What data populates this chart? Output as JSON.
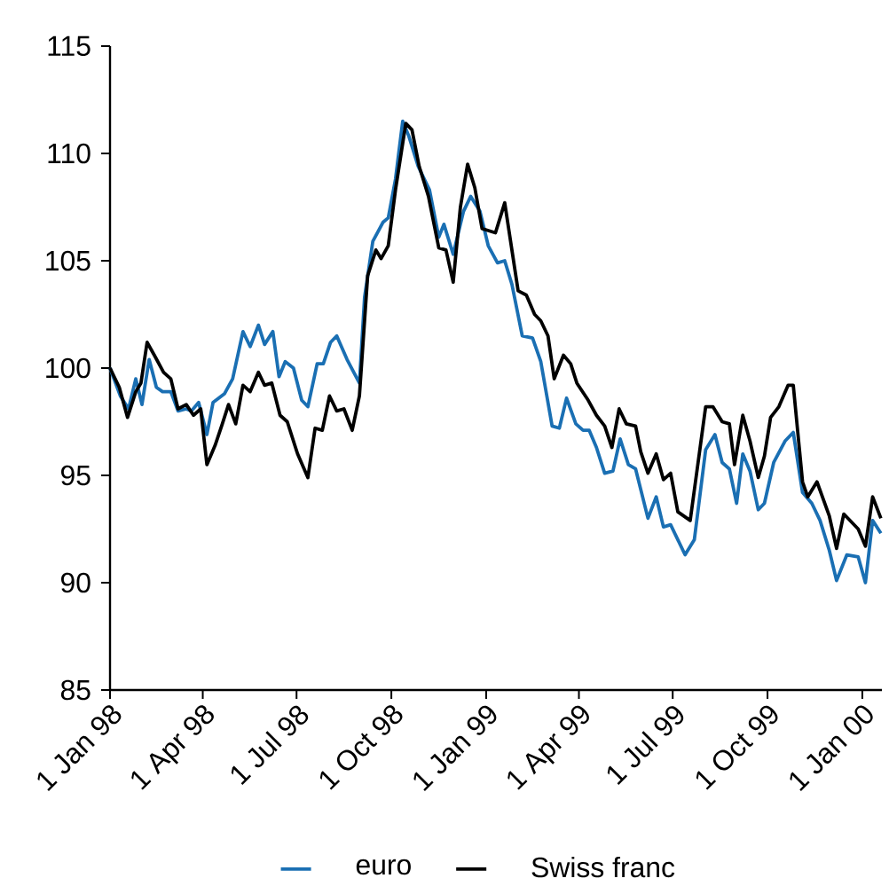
{
  "chart_data": {
    "type": "line",
    "xlim": [
      "1998-01-01",
      "2000-01-20"
    ],
    "xticks": [
      {
        "value": "1998-01-01",
        "label": "1 Jan 98"
      },
      {
        "value": "1998-04-01",
        "label": "1 Apr 98"
      },
      {
        "value": "1998-07-01",
        "label": "1 Jul 98"
      },
      {
        "value": "1998-10-01",
        "label": "1 Oct 98"
      },
      {
        "value": "1999-01-01",
        "label": "1 Jan 99"
      },
      {
        "value": "1999-04-01",
        "label": "1 Apr 99"
      },
      {
        "value": "1999-07-01",
        "label": "1 Jul 99"
      },
      {
        "value": "1999-10-01",
        "label": "1 Oct 99"
      },
      {
        "value": "2000-01-01",
        "label": "1 Jan 00"
      }
    ],
    "ylim": [
      85,
      115
    ],
    "yticks": [
      85,
      90,
      95,
      100,
      105,
      110,
      115
    ],
    "legend": "bottom",
    "marker": "none",
    "line_style": "solid",
    "series": [
      {
        "name": "euro",
        "color": "#1a6fb3",
        "x": [
          "1998-01-01",
          "1998-01-11",
          "1998-01-19",
          "1998-01-26",
          "1998-02-01",
          "1998-02-08",
          "1998-02-15",
          "1998-02-21",
          "1998-03-01",
          "1998-03-08",
          "1998-03-16",
          "1998-03-21",
          "1998-03-28",
          "1998-04-05",
          "1998-04-11",
          "1998-04-22",
          "1998-04-30",
          "1998-05-10",
          "1998-05-17",
          "1998-05-25",
          "1998-05-31",
          "1998-06-08",
          "1998-06-14",
          "1998-06-20",
          "1998-06-28",
          "1998-07-06",
          "1998-07-12",
          "1998-07-21",
          "1998-07-27",
          "1998-08-03",
          "1998-08-09",
          "1998-08-19",
          "1998-08-31",
          "1998-09-05",
          "1998-09-13",
          "1998-09-23",
          "1998-09-28",
          "1998-10-05",
          "1998-10-12",
          "1998-10-18",
          "1998-10-27",
          "1998-11-07",
          "1998-11-16",
          "1998-11-21",
          "1998-11-30",
          "1998-12-10",
          "1998-12-17",
          "1998-12-26",
          "1999-01-03",
          "1999-01-12",
          "1999-01-19",
          "1999-01-26",
          "1999-02-05",
          "1999-02-15",
          "1999-02-23",
          "1999-03-06",
          "1999-03-13",
          "1999-03-20",
          "1999-03-29",
          "1999-04-05",
          "1999-04-11",
          "1999-04-18",
          "1999-04-26",
          "1999-05-04",
          "1999-05-11",
          "1999-05-19",
          "1999-05-26",
          "1999-06-07",
          "1999-06-15",
          "1999-06-22",
          "1999-06-29",
          "1999-07-13",
          "1999-07-22",
          "1999-08-02",
          "1999-08-11",
          "1999-08-18",
          "1999-08-25",
          "1999-09-01",
          "1999-09-07",
          "1999-09-14",
          "1999-09-22",
          "1999-09-28",
          "1999-10-07",
          "1999-10-18",
          "1999-10-26",
          "1999-11-04",
          "1999-11-13",
          "1999-11-21",
          "1999-11-30",
          "1999-12-07",
          "1999-12-17",
          "1999-12-28",
          "2000-01-04",
          "2000-01-11",
          "2000-01-19"
        ],
        "values": [
          100.0,
          98.7,
          98.1,
          99.5,
          98.3,
          100.4,
          99.1,
          98.9,
          98.9,
          98.0,
          98.1,
          98.0,
          98.4,
          96.9,
          98.4,
          98.8,
          99.5,
          101.7,
          101.0,
          102.0,
          101.1,
          101.7,
          99.6,
          100.3,
          100.0,
          98.5,
          98.2,
          100.2,
          100.2,
          101.2,
          101.5,
          100.4,
          99.3,
          103.3,
          105.9,
          106.8,
          107.0,
          108.8,
          111.5,
          110.8,
          109.4,
          108.3,
          106.1,
          106.7,
          105.3,
          107.3,
          108.0,
          107.3,
          105.7,
          104.9,
          105.0,
          103.9,
          101.5,
          101.4,
          100.3,
          97.3,
          97.2,
          98.6,
          97.4,
          97.1,
          97.1,
          96.3,
          95.1,
          95.2,
          96.7,
          95.5,
          95.3,
          93.0,
          94.0,
          92.6,
          92.7,
          91.3,
          92.0,
          96.2,
          96.9,
          95.6,
          95.3,
          93.7,
          96.0,
          95.2,
          93.4,
          93.7,
          95.6,
          96.6,
          97.0,
          94.2,
          93.7,
          92.9,
          91.5,
          90.1,
          91.3,
          91.2,
          90.0,
          92.9,
          92.3
        ]
      },
      {
        "name": "Swiss franc",
        "color": "#000000",
        "x": [
          "1998-01-01",
          "1998-01-10",
          "1998-01-18",
          "1998-01-26",
          "1998-01-31",
          "1998-02-06",
          "1998-02-13",
          "1998-02-22",
          "1998-03-01",
          "1998-03-08",
          "1998-03-16",
          "1998-03-23",
          "1998-03-30",
          "1998-04-05",
          "1998-04-13",
          "1998-04-20",
          "1998-04-26",
          "1998-05-03",
          "1998-05-10",
          "1998-05-17",
          "1998-05-25",
          "1998-05-31",
          "1998-06-07",
          "1998-06-15",
          "1998-06-22",
          "1998-07-02",
          "1998-07-12",
          "1998-07-19",
          "1998-07-26",
          "1998-08-02",
          "1998-08-09",
          "1998-08-16",
          "1998-08-24",
          "1998-08-31",
          "1998-09-08",
          "1998-09-16",
          "1998-09-21",
          "1998-09-28",
          "1998-10-05",
          "1998-10-15",
          "1998-10-21",
          "1998-10-28",
          "1998-11-06",
          "1998-11-16",
          "1998-11-23",
          "1998-11-30",
          "1998-12-07",
          "1998-12-14",
          "1998-12-21",
          "1998-12-28",
          "1999-01-10",
          "1999-01-19",
          "1999-02-01",
          "1999-02-09",
          "1999-02-17",
          "1999-02-23",
          "1999-03-02",
          "1999-03-08",
          "1999-03-17",
          "1999-03-24",
          "1999-03-30",
          "1999-04-10",
          "1999-04-18",
          "1999-04-26",
          "1999-05-03",
          "1999-05-10",
          "1999-05-17",
          "1999-05-26",
          "1999-05-31",
          "1999-06-07",
          "1999-06-15",
          "1999-06-22",
          "1999-06-29",
          "1999-07-06",
          "1999-07-18",
          "1999-08-02",
          "1999-08-09",
          "1999-08-18",
          "1999-08-25",
          "1999-08-30",
          "1999-09-07",
          "1999-09-14",
          "1999-09-22",
          "1999-09-28",
          "1999-10-04",
          "1999-10-12",
          "1999-10-21",
          "1999-10-26",
          "1999-11-04",
          "1999-11-09",
          "1999-11-18",
          "1999-11-30",
          "1999-12-07",
          "1999-12-14",
          "1999-12-28",
          "2000-01-04",
          "2000-01-11",
          "2000-01-19"
        ],
        "values": [
          100.0,
          99.1,
          97.7,
          98.9,
          99.3,
          101.2,
          100.6,
          99.8,
          99.5,
          98.1,
          98.3,
          97.8,
          98.1,
          95.5,
          96.4,
          97.4,
          98.3,
          97.4,
          99.2,
          98.9,
          99.8,
          99.2,
          99.3,
          97.8,
          97.5,
          96.0,
          94.9,
          97.2,
          97.1,
          98.7,
          98.0,
          98.1,
          97.1,
          98.7,
          104.3,
          105.5,
          105.1,
          105.7,
          108.3,
          111.4,
          111.1,
          109.4,
          108.0,
          105.6,
          105.5,
          104.0,
          107.5,
          109.5,
          108.4,
          106.5,
          106.3,
          107.7,
          103.6,
          103.4,
          102.5,
          102.2,
          101.5,
          99.5,
          100.6,
          100.2,
          99.3,
          98.5,
          97.8,
          97.3,
          96.3,
          98.1,
          97.4,
          97.3,
          96.1,
          95.1,
          96.0,
          94.8,
          95.1,
          93.3,
          92.9,
          98.2,
          98.2,
          97.5,
          97.4,
          95.5,
          97.8,
          96.6,
          94.9,
          95.9,
          97.7,
          98.2,
          99.2,
          99.2,
          94.7,
          94.0,
          94.7,
          93.1,
          91.6,
          93.2,
          92.5,
          91.7,
          94.0,
          93.0
        ]
      }
    ]
  }
}
